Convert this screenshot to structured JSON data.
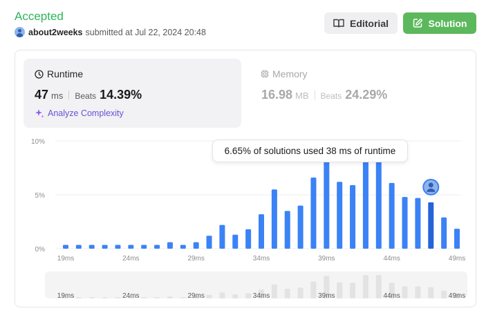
{
  "status": "Accepted",
  "submission": {
    "username": "about2weeks",
    "submitted_text": "submitted at Jul 22, 2024 20:48"
  },
  "buttons": {
    "editorial": "Editorial",
    "solution": "Solution"
  },
  "runtime": {
    "label": "Runtime",
    "value": "47",
    "unit": "ms",
    "beats_label": "Beats",
    "beats_value": "14.39%",
    "analyze": "Analyze Complexity"
  },
  "memory": {
    "label": "Memory",
    "value": "16.98",
    "unit": "MB",
    "beats_label": "Beats",
    "beats_value": "24.29%"
  },
  "tooltip": "6.65% of solutions used 38 ms of runtime",
  "colors": {
    "accepted": "#2db55d",
    "bar": "#3b82f6",
    "bar_user": "#2563d8",
    "bar_mini": "#e3e3e3",
    "analyze": "#6b4fd8"
  },
  "chart_data": {
    "type": "bar",
    "xlabel": "",
    "ylabel": "",
    "ylim": [
      0,
      10
    ],
    "y_ticks": [
      "0%",
      "5%",
      "10%"
    ],
    "x_ticks": [
      "19ms",
      "24ms",
      "29ms",
      "34ms",
      "39ms",
      "44ms",
      "49ms"
    ],
    "x": [
      19,
      20,
      21,
      22,
      23,
      24,
      25,
      26,
      27,
      28,
      29,
      30,
      31,
      32,
      33,
      34,
      35,
      36,
      37,
      38,
      39,
      40,
      41,
      42,
      43,
      44,
      45,
      46,
      47,
      48,
      49
    ],
    "values": [
      0.35,
      0.35,
      0.35,
      0.35,
      0.35,
      0.35,
      0.35,
      0.35,
      0.6,
      0.35,
      0.6,
      1.2,
      2.2,
      1.3,
      1.8,
      3.2,
      5.5,
      3.5,
      4.0,
      6.6,
      10.0,
      6.2,
      5.9,
      10.0,
      10.0,
      6.1,
      4.8,
      4.7,
      4.3,
      2.9,
      1.85
    ],
    "highlight_x": 47,
    "mini_values": [
      0.3,
      0.3,
      0.3,
      0.3,
      0.3,
      0.3,
      0.3,
      0.3,
      0.5,
      0.3,
      0.5,
      0.9,
      1.5,
      1.0,
      1.3,
      2.2,
      3.5,
      2.4,
      2.7,
      4.2,
      5.6,
      4.0,
      3.9,
      5.8,
      5.8,
      3.9,
      3.0,
      3.0,
      2.8,
      1.9,
      1.3
    ]
  }
}
